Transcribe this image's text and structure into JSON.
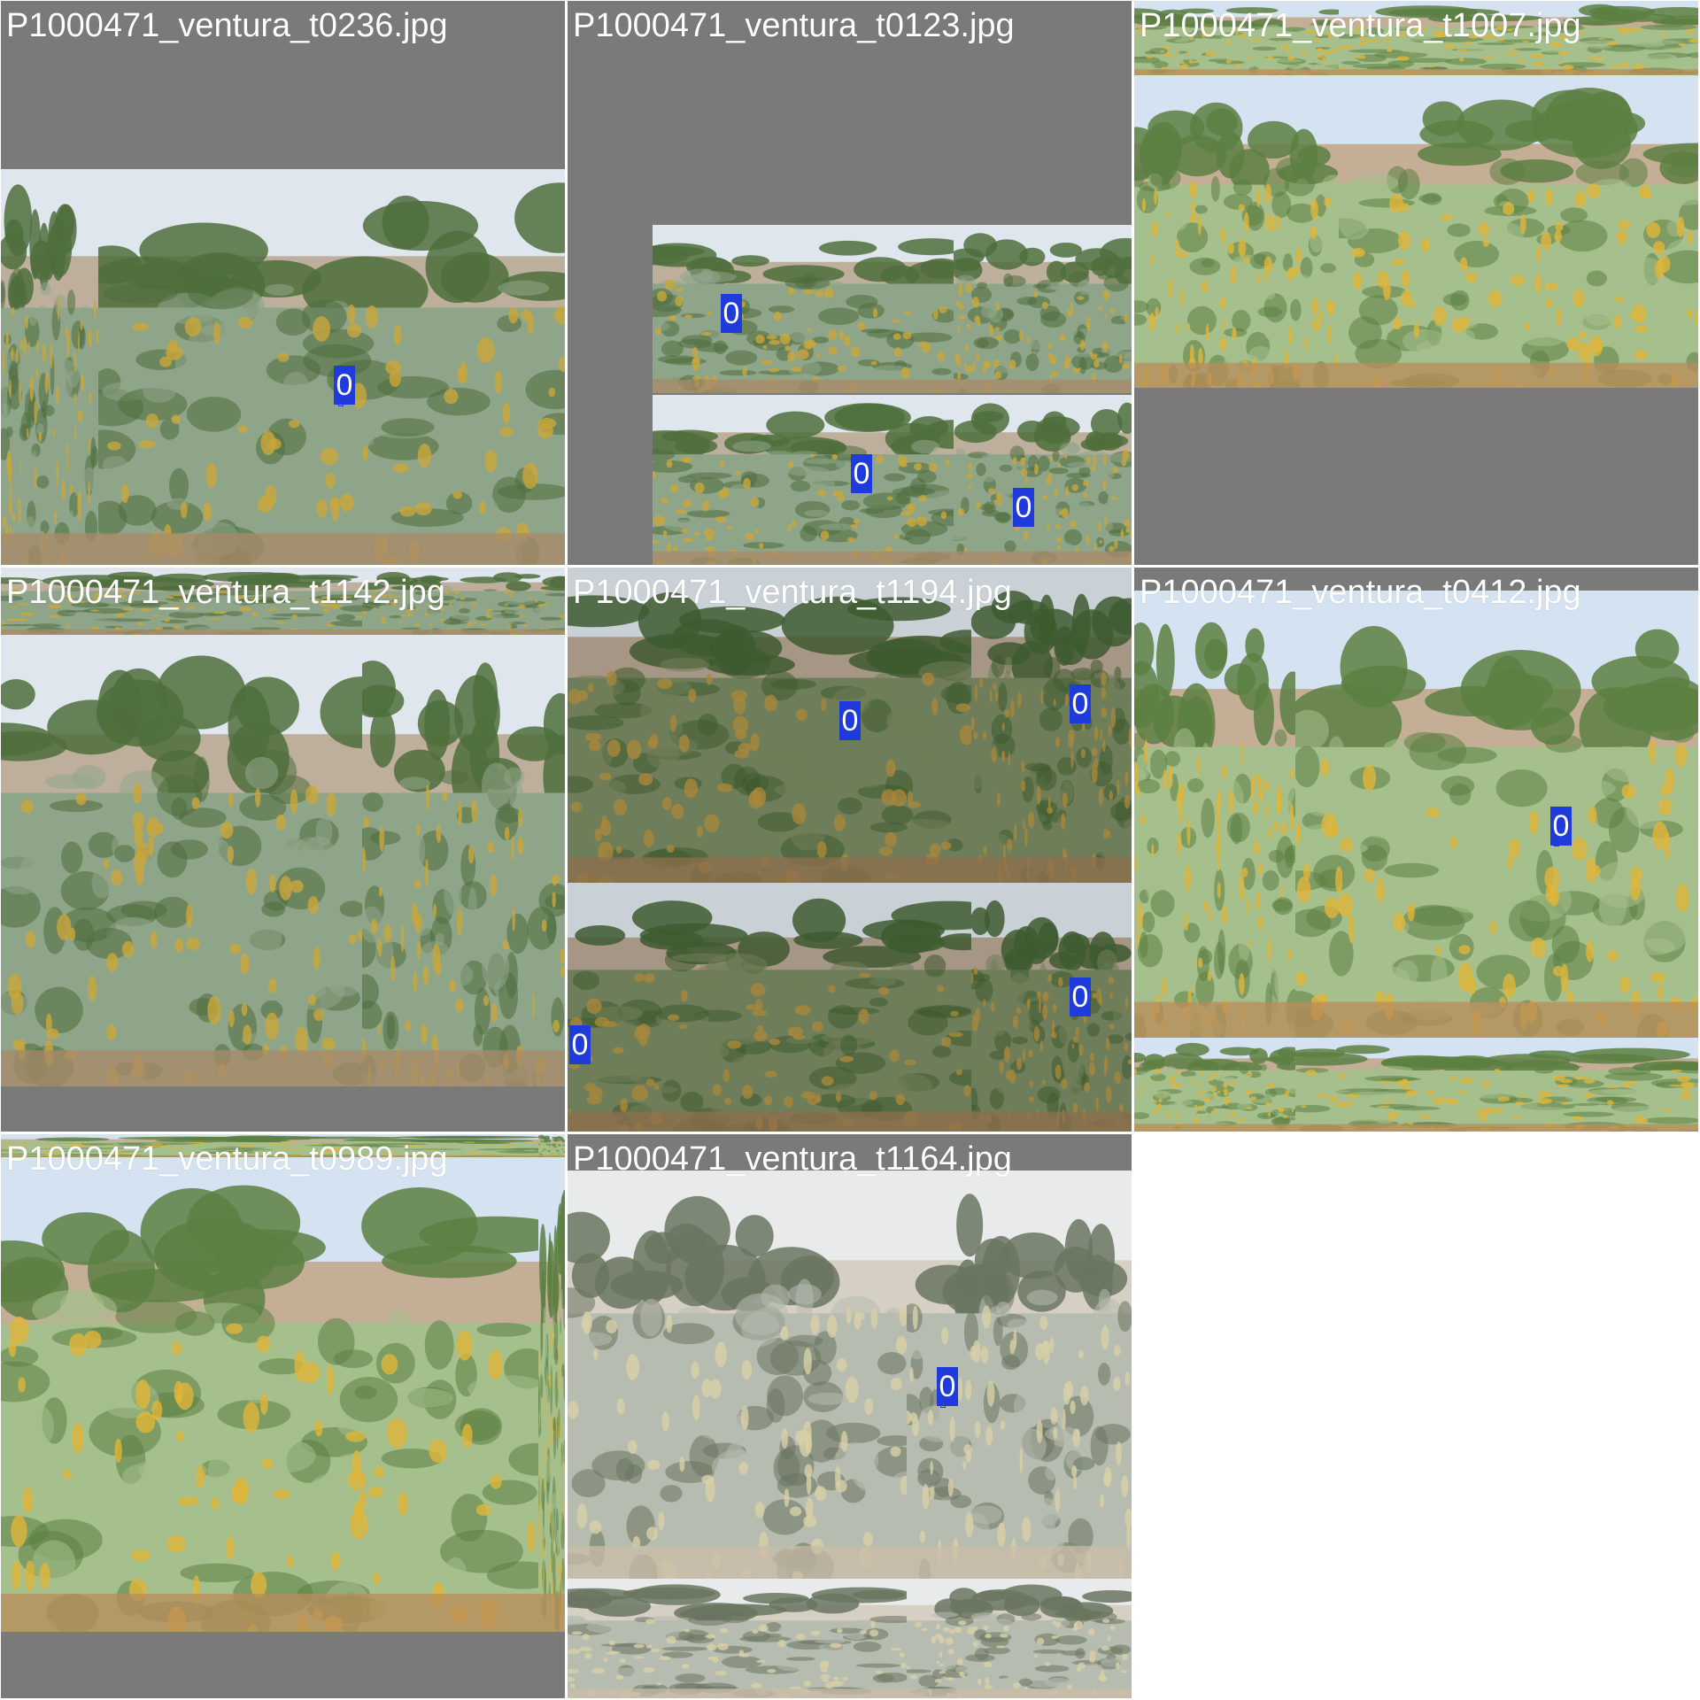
{
  "grid": {
    "background": "#ffffff",
    "letterbox_color": "#7a7a7a",
    "box_color": "#1f3bdc",
    "label_color": "#ffffff"
  },
  "cells": [
    {
      "name": "cell-t0236",
      "filename": "P1000471_ventura_t0236.jpg",
      "detections": [
        "0"
      ]
    },
    {
      "name": "cell-t0123",
      "filename": "P1000471_ventura_t0123.jpg",
      "detections": [
        "0",
        "0",
        "0"
      ]
    },
    {
      "name": "cell-t1007",
      "filename": "P1000471_ventura_t1007.jpg",
      "detections": []
    },
    {
      "name": "cell-t1142",
      "filename": "P1000471_ventura_t1142.jpg",
      "detections": []
    },
    {
      "name": "cell-t1194",
      "filename": "P1000471_ventura_t1194.jpg",
      "detections": [
        "0",
        "0",
        "0",
        "0"
      ]
    },
    {
      "name": "cell-t0412",
      "filename": "P1000471_ventura_t0412.jpg",
      "detections": [
        "0"
      ]
    },
    {
      "name": "cell-t0989",
      "filename": "P1000471_ventura_t0989.jpg",
      "detections": []
    },
    {
      "name": "cell-t1164",
      "filename": "P1000471_ventura_t1164.jpg",
      "detections": [
        "0"
      ]
    }
  ],
  "scene_palettes": {
    "summer": {
      "sky": "#dfe6ee",
      "bush": "#8fa58a",
      "dark": "#4f6e3c",
      "flower": "#c9a63a",
      "soil": "#a88a68"
    },
    "dull": {
      "sky": "#c9d0d6",
      "bush": "#6f7e5a",
      "dark": "#3e5a30",
      "flower": "#a7873a",
      "soil": "#8f6f4e"
    },
    "pale": {
      "sky": "#e8eaec",
      "bush": "#b7bcb0",
      "dark": "#6a7560",
      "flower": "#d8cfa8",
      "soil": "#c9bca8"
    },
    "bright": {
      "sky": "#d4e2f1",
      "bush": "#a5bf8d",
      "dark": "#5c7f42",
      "flower": "#e0b53a",
      "soil": "#b98c5a"
    }
  }
}
